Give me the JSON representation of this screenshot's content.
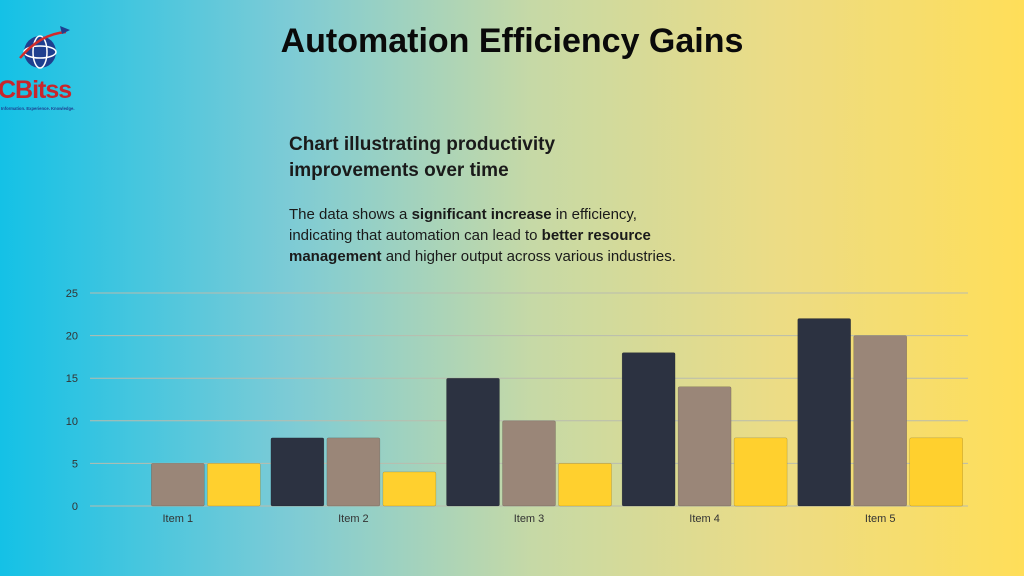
{
  "page": {
    "title": "Automation Efficiency Gains",
    "subtitle": "Chart illustrating productivity improvements over time",
    "description": {
      "p1": "The data shows a ",
      "b1": "significant increase",
      "p2": " in efficiency, indicating that automation can lead to ",
      "b2": "better resource management",
      "p3": " and higher output across various industries."
    },
    "logo": {
      "text": "CBitss",
      "tagline": "Information. Experience. Knowledge.",
      "icon": "globe-plane-icon"
    }
  },
  "colors": {
    "series1": "#2c3241",
    "series2": "#9a8678",
    "series3": "#ffd02e",
    "grid": "#b9bcae"
  },
  "chart_data": {
    "type": "bar",
    "categories": [
      "Item 1",
      "Item 2",
      "Item 3",
      "Item 4",
      "Item 5"
    ],
    "series": [
      {
        "values": [
          0,
          8,
          15,
          18,
          22
        ]
      },
      {
        "values": [
          5,
          8,
          10,
          14,
          20
        ]
      },
      {
        "values": [
          5,
          4,
          5,
          8,
          8
        ]
      }
    ],
    "ylim": [
      0,
      25
    ],
    "yticks": [
      0,
      5,
      10,
      15,
      20,
      25
    ],
    "grid": true,
    "legend": "none"
  }
}
